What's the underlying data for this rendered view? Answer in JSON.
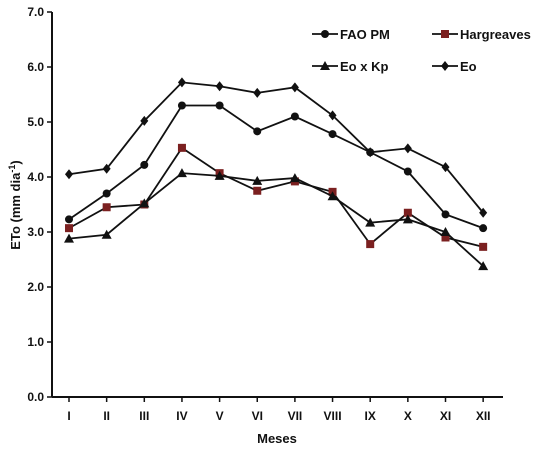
{
  "chart_data": {
    "type": "line",
    "title": "",
    "xlabel": "Meses",
    "ylabel_main": "ETo (mm dia",
    "ylabel_sup": "-1",
    "ylabel_close": ")",
    "categories": [
      "I",
      "II",
      "III",
      "IV",
      "V",
      "VI",
      "VII",
      "VIII",
      "IX",
      "X",
      "XI",
      "XII"
    ],
    "ylim": [
      0,
      7
    ],
    "yticks": [
      "0.0",
      "1.0",
      "2.0",
      "3.0",
      "4.0",
      "5.0",
      "6.0",
      "7.0"
    ],
    "grid": false,
    "legend_position": "top-right",
    "series": [
      {
        "name": "FAO PM",
        "marker": "circle",
        "values": [
          3.23,
          3.7,
          4.22,
          5.3,
          5.3,
          4.83,
          5.1,
          4.78,
          4.45,
          4.1,
          3.32,
          3.07
        ]
      },
      {
        "name": "Hargreaves",
        "marker": "square",
        "color": "#7b2020",
        "values": [
          3.07,
          3.45,
          3.5,
          4.53,
          4.07,
          3.75,
          3.92,
          3.73,
          2.78,
          3.35,
          2.9,
          2.73
        ]
      },
      {
        "name": "Eo x Kp",
        "marker": "triangle",
        "values": [
          2.88,
          2.95,
          3.52,
          4.07,
          4.02,
          3.93,
          3.98,
          3.65,
          3.17,
          3.23,
          3.0,
          2.38
        ]
      },
      {
        "name": "Eo",
        "marker": "diamond",
        "values": [
          4.05,
          4.15,
          5.02,
          5.72,
          5.65,
          5.53,
          5.63,
          5.12,
          4.45,
          4.52,
          4.18,
          3.35
        ]
      }
    ]
  }
}
